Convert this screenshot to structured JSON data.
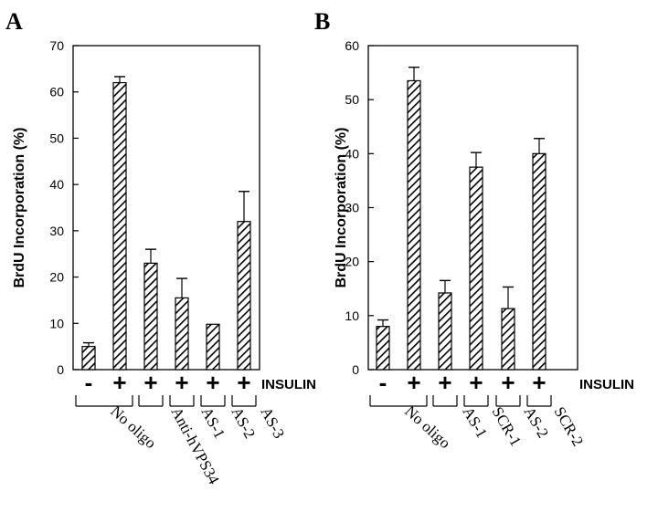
{
  "chart_data": [
    {
      "panel": "A",
      "type": "bar",
      "ylabel": "BrdU Incorporation (%)",
      "ylim": [
        0,
        70
      ],
      "yticks": [
        0,
        10,
        20,
        30,
        40,
        50,
        60,
        70
      ],
      "treatment_label": "INSULIN",
      "insulin": [
        "-",
        "+",
        "+",
        "+",
        "+",
        "+"
      ],
      "values": [
        5,
        62,
        23,
        15.5,
        9.8,
        32
      ],
      "errors": [
        0.8,
        1.3,
        3,
        4.2,
        0,
        6.5
      ],
      "groups": [
        {
          "label": "No oligo",
          "bars": [
            0,
            1
          ]
        },
        {
          "label": "Anti-hVPS34",
          "bars": [
            2
          ]
        },
        {
          "label": "AS-1",
          "bars": [
            3
          ]
        },
        {
          "label": "AS-2",
          "bars": [
            4
          ]
        },
        {
          "label": "AS-3",
          "bars": [
            5
          ]
        }
      ],
      "grid": false,
      "bar_pattern": "diagonal-hatch"
    },
    {
      "panel": "B",
      "type": "bar",
      "ylabel": "BrdU Incorporation (%)",
      "ylim": [
        0,
        60
      ],
      "yticks": [
        0,
        10,
        20,
        30,
        40,
        50,
        60
      ],
      "treatment_label": "INSULIN",
      "insulin": [
        "-",
        "+",
        "+",
        "+",
        "+",
        "+"
      ],
      "values": [
        8,
        53.5,
        14.2,
        37.5,
        11.3,
        40
      ],
      "errors": [
        1.2,
        2.5,
        2.3,
        2.7,
        4,
        2.8
      ],
      "groups": [
        {
          "label": "No oligo",
          "bars": [
            0,
            1
          ]
        },
        {
          "label": "AS-1",
          "bars": [
            2
          ]
        },
        {
          "label": "SCR-1",
          "bars": [
            3
          ]
        },
        {
          "label": "AS-2",
          "bars": [
            4
          ]
        },
        {
          "label": "SCR-2",
          "bars": [
            5
          ]
        }
      ],
      "grid": false,
      "bar_pattern": "diagonal-hatch"
    }
  ]
}
